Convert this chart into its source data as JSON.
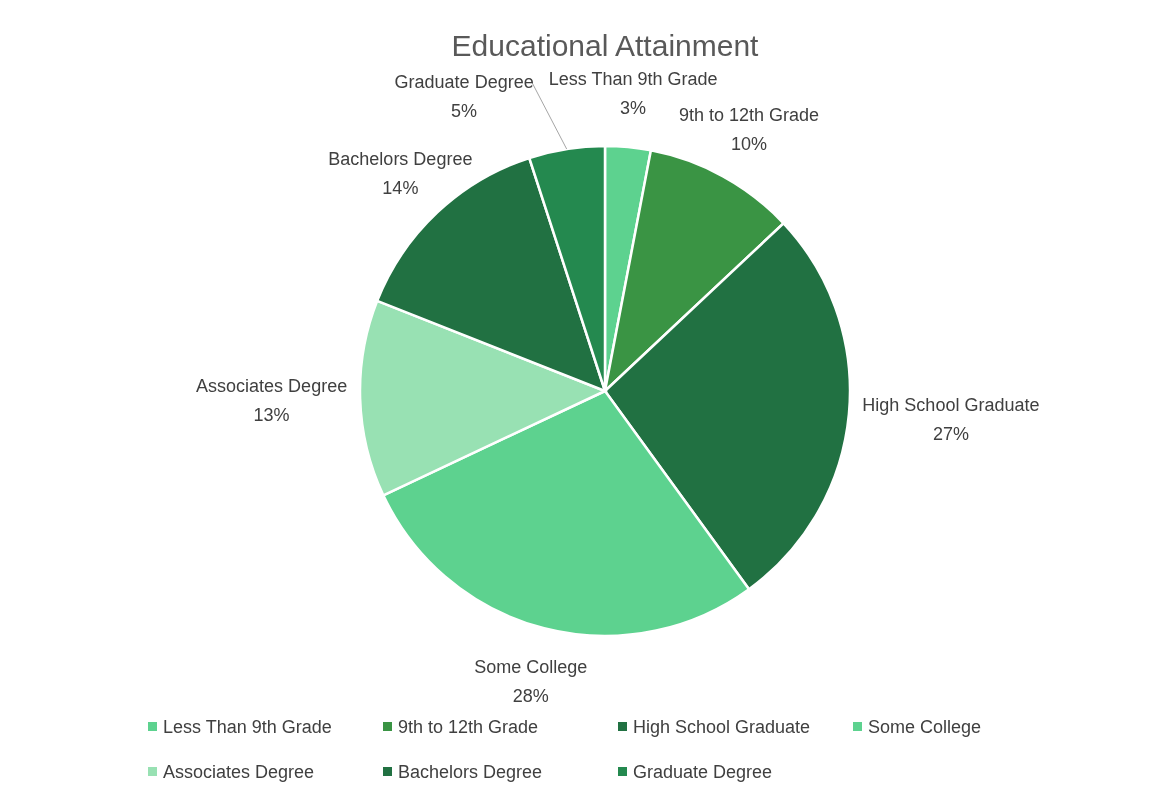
{
  "chart_data": {
    "type": "pie",
    "title": "Educational Attainment",
    "categories": [
      "Less Than 9th Grade",
      "9th to 12th Grade",
      "High School Graduate",
      "Some College",
      "Associates Degree",
      "Bachelors Degree",
      "Graduate Degree"
    ],
    "values": [
      3,
      10,
      27,
      28,
      13,
      14,
      5
    ],
    "colors": [
      "#5dd28f",
      "#3a9444",
      "#217142",
      "#5dd28f",
      "#98e1b3",
      "#217142",
      "#24894f"
    ],
    "value_labels": [
      "3%",
      "10%",
      "27%",
      "28%",
      "13%",
      "14%",
      "5%"
    ],
    "legend": "bottom"
  }
}
